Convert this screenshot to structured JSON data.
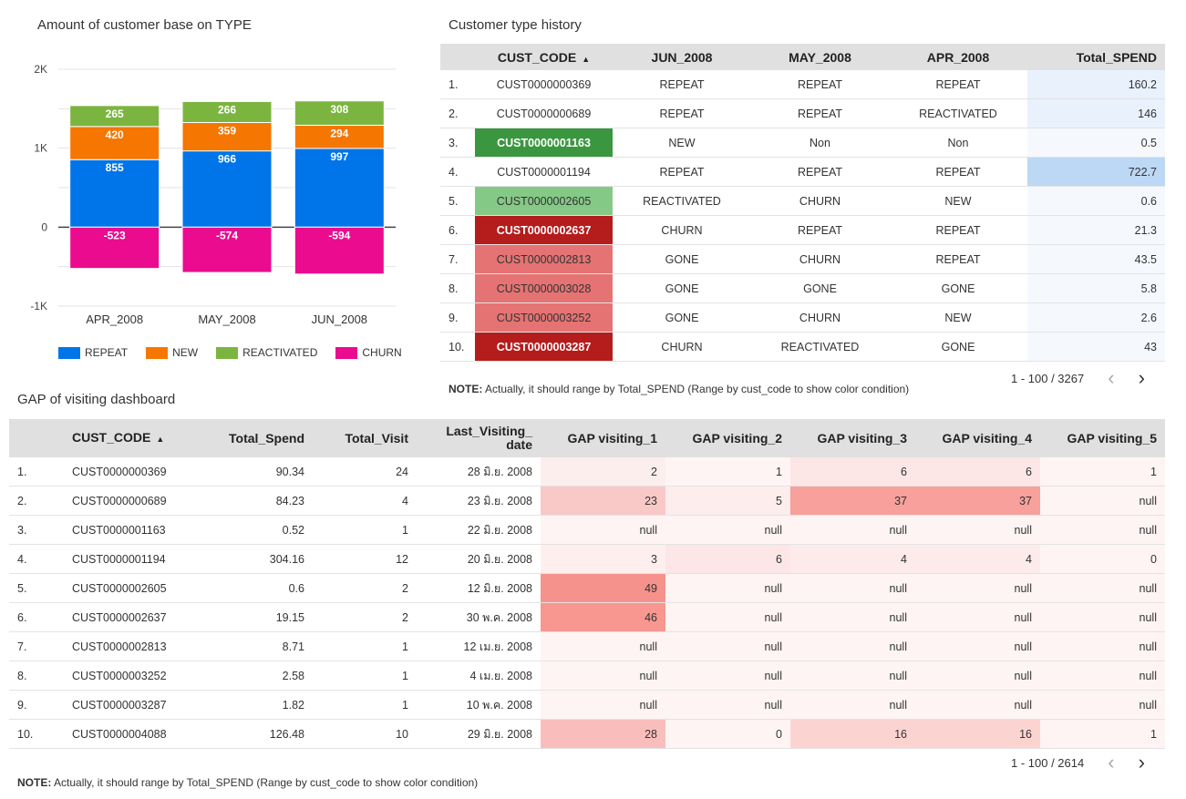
{
  "chart_title": "Amount of customer base on TYPE",
  "chart_data": {
    "type": "bar",
    "stacked": true,
    "categories": [
      "APR_2008",
      "MAY_2008",
      "JUN_2008"
    ],
    "series": [
      {
        "name": "REPEAT",
        "values": [
          855,
          966,
          997
        ],
        "color": "#0075e9"
      },
      {
        "name": "NEW",
        "values": [
          420,
          359,
          294
        ],
        "color": "#f57600"
      },
      {
        "name": "REACTIVATED",
        "values": [
          265,
          266,
          308
        ],
        "color": "#7bb540"
      },
      {
        "name": "CHURN",
        "values": [
          -523,
          -574,
          -594
        ],
        "color": "#ea0b8f"
      }
    ],
    "y_ticks": [
      "2K",
      "1K",
      "0",
      "-1K"
    ],
    "ylim": [
      -1000,
      2000
    ],
    "legend_position": "bottom"
  },
  "table1": {
    "title": "Customer type history",
    "headers": [
      "CUST_CODE",
      "JUN_2008",
      "MAY_2008",
      "APR_2008",
      "Total_SPEND"
    ],
    "sort_arrow": "▲",
    "rows": [
      {
        "n": "1.",
        "code": "CUST0000000369",
        "jun": "REPEAT",
        "may": "REPEAT",
        "apr": "REPEAT",
        "spend": "160.2",
        "codeBg": "",
        "codeColor": "#333",
        "spendBg": "#e8f1fc"
      },
      {
        "n": "2.",
        "code": "CUST0000000689",
        "jun": "REPEAT",
        "may": "REPEAT",
        "apr": "REACTIVATED",
        "spend": "146",
        "codeBg": "",
        "codeColor": "#333",
        "spendBg": "#e8f1fc"
      },
      {
        "n": "3.",
        "code": "CUST0000001163",
        "jun": "NEW",
        "may": "Non",
        "apr": "Non",
        "spend": "0.5",
        "codeBg": "#3b9640",
        "codeColor": "#fff",
        "spendBg": "#f5f9fe"
      },
      {
        "n": "4.",
        "code": "CUST0000001194",
        "jun": "REPEAT",
        "may": "REPEAT",
        "apr": "REPEAT",
        "spend": "722.7",
        "codeBg": "",
        "codeColor": "#333",
        "spendBg": "#bcd8f5"
      },
      {
        "n": "5.",
        "code": "CUST0000002605",
        "jun": "REACTIVATED",
        "may": "CHURN",
        "apr": "NEW",
        "spend": "0.6",
        "codeBg": "#85c987",
        "codeColor": "#333",
        "spendBg": "#f5f9fe"
      },
      {
        "n": "6.",
        "code": "CUST0000002637",
        "jun": "CHURN",
        "may": "REPEAT",
        "apr": "REPEAT",
        "spend": "21.3",
        "codeBg": "#b51c1c",
        "codeColor": "#fff",
        "spendBg": "#f5f9fe"
      },
      {
        "n": "7.",
        "code": "CUST0000002813",
        "jun": "GONE",
        "may": "CHURN",
        "apr": "REPEAT",
        "spend": "43.5",
        "codeBg": "#e57373",
        "codeColor": "#333",
        "spendBg": "#f5f9fe"
      },
      {
        "n": "8.",
        "code": "CUST0000003028",
        "jun": "GONE",
        "may": "GONE",
        "apr": "GONE",
        "spend": "5.8",
        "codeBg": "#e57373",
        "codeColor": "#333",
        "spendBg": "#f5f9fe"
      },
      {
        "n": "9.",
        "code": "CUST0000003252",
        "jun": "GONE",
        "may": "CHURN",
        "apr": "NEW",
        "spend": "2.6",
        "codeBg": "#e57373",
        "codeColor": "#333",
        "spendBg": "#f5f9fe"
      },
      {
        "n": "10.",
        "code": "CUST0000003287",
        "jun": "CHURN",
        "may": "REACTIVATED",
        "apr": "GONE",
        "spend": "43",
        "codeBg": "#b51c1c",
        "codeColor": "#fff",
        "spendBg": "#f5f9fe"
      }
    ],
    "pager": "1 - 100 / 3267",
    "note_label": "NOTE:",
    "note_text": " Actually, it should range by Total_SPEND (Range by cust_code to show color condition)"
  },
  "table2": {
    "title": "GAP of visiting dashboard",
    "headers": [
      "CUST_CODE",
      "Total_Spend",
      "Total_Visit",
      "Last_Visiting_ date",
      "GAP visiting_1",
      "GAP visiting_2",
      "GAP visiting_3",
      "GAP visiting_4",
      "GAP visiting_5"
    ],
    "sort_arrow": "▲",
    "rows": [
      {
        "n": "1.",
        "code": "CUST0000000369",
        "spend": "90.34",
        "visit": "24",
        "date": "28 มิ.ย. 2008",
        "g": [
          "2",
          "1",
          "6",
          "6",
          "1"
        ],
        "bg": [
          "#fdeeee",
          "#fff4f4",
          "#fde6e6",
          "#fde6e6",
          "#fff4f4"
        ]
      },
      {
        "n": "2.",
        "code": "CUST0000000689",
        "spend": "84.23",
        "visit": "4",
        "date": "23 มิ.ย. 2008",
        "g": [
          "23",
          "5",
          "37",
          "37",
          "null"
        ],
        "bg": [
          "#f9c9c7",
          "#fdeded",
          "#f7a09c",
          "#f7a09c",
          "#fff4f4"
        ]
      },
      {
        "n": "3.",
        "code": "CUST0000001163",
        "spend": "0.52",
        "visit": "1",
        "date": "22 มิ.ย. 2008",
        "g": [
          "null",
          "null",
          "null",
          "null",
          "null"
        ],
        "bg": [
          "#fff4f4",
          "#fff4f4",
          "#fff4f4",
          "#fff4f4",
          "#fff4f4"
        ]
      },
      {
        "n": "4.",
        "code": "CUST0000001194",
        "spend": "304.16",
        "visit": "12",
        "date": "20 มิ.ย. 2008",
        "g": [
          "3",
          "6",
          "4",
          "4",
          "0"
        ],
        "bg": [
          "#feefee",
          "#fde6e6",
          "#fdebeb",
          "#fdebeb",
          "#fff4f4"
        ]
      },
      {
        "n": "5.",
        "code": "CUST0000002605",
        "spend": "0.6",
        "visit": "2",
        "date": "12 มิ.ย. 2008",
        "g": [
          "49",
          "null",
          "null",
          "null",
          "null"
        ],
        "bg": [
          "#f6928c",
          "#fff4f4",
          "#fff4f4",
          "#fff4f4",
          "#fff4f4"
        ]
      },
      {
        "n": "6.",
        "code": "CUST0000002637",
        "spend": "19.15",
        "visit": "2",
        "date": "30 พ.ค. 2008",
        "g": [
          "46",
          "null",
          "null",
          "null",
          "null"
        ],
        "bg": [
          "#f7978f",
          "#fff4f4",
          "#fff4f4",
          "#fff4f4",
          "#fff4f4"
        ]
      },
      {
        "n": "7.",
        "code": "CUST0000002813",
        "spend": "8.71",
        "visit": "1",
        "date": "12 เม.ย. 2008",
        "g": [
          "null",
          "null",
          "null",
          "null",
          "null"
        ],
        "bg": [
          "#fff4f4",
          "#fff4f4",
          "#fff4f4",
          "#fff4f4",
          "#fff4f4"
        ]
      },
      {
        "n": "8.",
        "code": "CUST0000003252",
        "spend": "2.58",
        "visit": "1",
        "date": "4 เม.ย. 2008",
        "g": [
          "null",
          "null",
          "null",
          "null",
          "null"
        ],
        "bg": [
          "#fff4f4",
          "#fff4f4",
          "#fff4f4",
          "#fff4f4",
          "#fff4f4"
        ]
      },
      {
        "n": "9.",
        "code": "CUST0000003287",
        "spend": "1.82",
        "visit": "1",
        "date": "10 พ.ค. 2008",
        "g": [
          "null",
          "null",
          "null",
          "null",
          "null"
        ],
        "bg": [
          "#fff4f4",
          "#fff4f4",
          "#fff4f4",
          "#fff4f4",
          "#fff4f4"
        ]
      },
      {
        "n": "10.",
        "code": "CUST0000004088",
        "spend": "126.48",
        "visit": "10",
        "date": "29 มิ.ย. 2008",
        "g": [
          "28",
          "0",
          "16",
          "16",
          "1"
        ],
        "bg": [
          "#f9bebb",
          "#fff4f4",
          "#fbd4d2",
          "#fbd4d2",
          "#fff4f4"
        ]
      }
    ],
    "pager": "1 - 100 / 2614",
    "note_label": "NOTE:",
    "note_text": "  Actually, it should range by Total_SPEND (Range by cust_code to show color condition)"
  },
  "icons": {
    "prev": "chevron-left-icon",
    "next": "chevron-right-icon"
  }
}
